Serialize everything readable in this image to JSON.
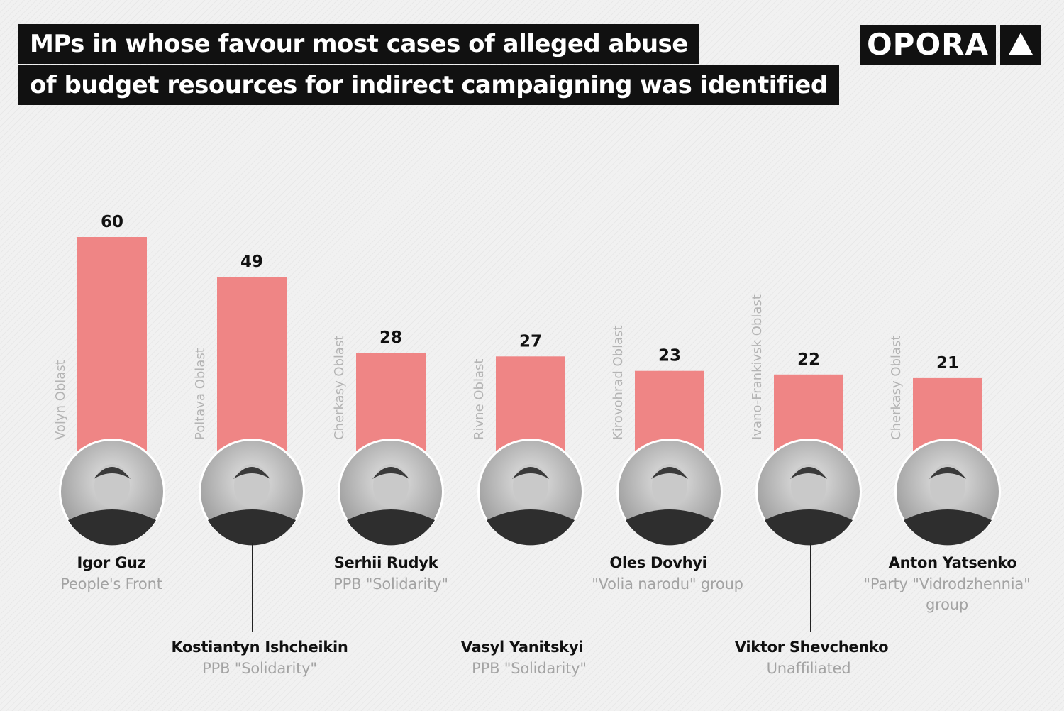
{
  "header": {
    "title_line1": "MPs in whose favour most cases of alleged abuse",
    "title_line2": "of budget resources for indirect campaigning was identified",
    "logo_text": "OPORA",
    "logo_icon": "triangle-icon"
  },
  "colors": {
    "bar": "#ef8585",
    "title_bg": "#111111",
    "value_text": "#111111",
    "region_text": "#b4b4b4",
    "party_text": "#a3a3a3"
  },
  "chart_data": {
    "type": "bar",
    "categories": [
      "Igor Guz",
      "Kostiantyn Ishcheikin",
      "Serhii Rudyk",
      "Vasyl Yanitskyi",
      "Oles Dovhyi",
      "Viktor Shevchenko",
      "Anton Yatsenko"
    ],
    "values": [
      60,
      49,
      28,
      27,
      23,
      22,
      21
    ],
    "regions": [
      "Volyn Oblast",
      "Poltava Oblast",
      "Cherkasy Oblast",
      "Rivne Oblast",
      "Kirovohrad Oblast",
      "Ivano-Frankivsk Oblast",
      "Cherkasy Oblast"
    ],
    "parties": [
      "People's Front",
      "PPB \"Solidarity\"",
      "PPB \"Solidarity\"",
      "PPB \"Solidarity\"",
      "\"Volia narodu\" group",
      "Unaffiliated",
      "\"Party \"Vidrodzhennia\" group"
    ],
    "title": "MPs in whose favour most cases of alleged abuse of budget resources for indirect campaigning was identified",
    "xlabel": "",
    "ylabel": "",
    "grid": false,
    "legend": "none"
  },
  "people": [
    {
      "name": "Igor Guz",
      "party": "People's Front",
      "portrait": "portrait-photo"
    },
    {
      "name": "Kostiantyn Ishcheikin",
      "party": "PPB \"Solidarity\"",
      "portrait": "portrait-photo"
    },
    {
      "name": "Serhii Rudyk",
      "party": "PPB \"Solidarity\"",
      "portrait": "portrait-photo"
    },
    {
      "name": "Vasyl Yanitskyi",
      "party": "PPB \"Solidarity\"",
      "portrait": "portrait-photo"
    },
    {
      "name": "Oles Dovhyi",
      "party": "\"Volia narodu\" group",
      "portrait": "portrait-photo"
    },
    {
      "name": "Viktor Shevchenko",
      "party": "Unaffiliated",
      "portrait": "portrait-photo"
    },
    {
      "name": "Anton Yatsenko",
      "party": "\"Party \"Vidrodzhennia\" group",
      "portrait": "portrait-photo"
    }
  ]
}
